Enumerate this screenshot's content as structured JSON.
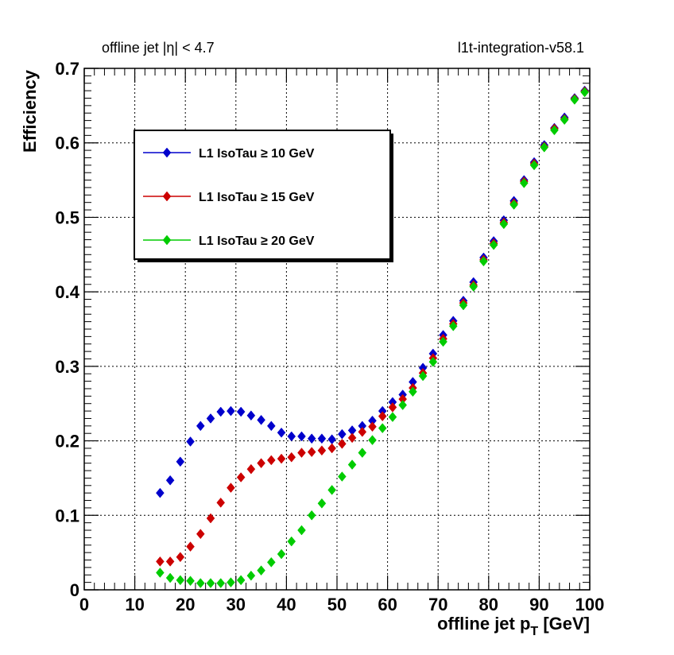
{
  "header": {
    "left": "offline jet |η| < 4.7",
    "right": "l1t-integration-v58.1"
  },
  "chart_data": {
    "type": "scatter",
    "title": "",
    "xlabel": "offline jet p",
    "xlabel_sub": "T",
    "xlabel_unit": " [GeV]",
    "ylabel": "Efficiency",
    "xlim": [
      0,
      100
    ],
    "ylim": [
      0,
      0.7
    ],
    "xticks": [
      0,
      10,
      20,
      30,
      40,
      50,
      60,
      70,
      80,
      90,
      100
    ],
    "xtick_labels": [
      "0",
      "10",
      "20",
      "30",
      "40",
      "50",
      "60",
      "70",
      "80",
      "90",
      "100"
    ],
    "yticks": [
      0,
      0.1,
      0.2,
      0.3,
      0.4,
      0.5,
      0.6,
      0.7
    ],
    "ytick_labels": [
      "0",
      "0.1",
      "0.2",
      "0.3",
      "0.4",
      "0.5",
      "0.6",
      "0.7"
    ],
    "grid": true,
    "legend_position": "top-left",
    "x": [
      15,
      17,
      19,
      21,
      23,
      25,
      27,
      29,
      31,
      33,
      35,
      37,
      39,
      41,
      43,
      45,
      47,
      49,
      51,
      53,
      55,
      57,
      59,
      61,
      63,
      65,
      67,
      69,
      71,
      73,
      75,
      77,
      79,
      81,
      83,
      85,
      87,
      89,
      91,
      93,
      95,
      97,
      99
    ],
    "series": [
      {
        "name": "L1 IsoTau ≥ 10 GeV",
        "color": "#0000cc",
        "values": [
          0.13,
          0.147,
          0.172,
          0.199,
          0.22,
          0.23,
          0.239,
          0.24,
          0.239,
          0.234,
          0.228,
          0.22,
          0.211,
          0.206,
          0.206,
          0.203,
          0.203,
          0.202,
          0.209,
          0.214,
          0.22,
          0.227,
          0.24,
          0.252,
          0.262,
          0.279,
          0.298,
          0.317,
          0.342,
          0.361,
          0.388,
          0.413,
          0.446,
          0.468,
          0.496,
          0.522,
          0.55,
          0.574,
          0.597,
          0.62,
          0.634,
          0.66,
          0.67
        ]
      },
      {
        "name": "L1 IsoTau ≥ 15 GeV",
        "color": "#cc0000",
        "values": [
          0.038,
          0.038,
          0.044,
          0.058,
          0.075,
          0.096,
          0.117,
          0.137,
          0.151,
          0.162,
          0.17,
          0.174,
          0.176,
          0.178,
          0.184,
          0.185,
          0.187,
          0.19,
          0.196,
          0.204,
          0.212,
          0.219,
          0.233,
          0.245,
          0.256,
          0.271,
          0.291,
          0.311,
          0.337,
          0.357,
          0.385,
          0.409,
          0.443,
          0.465,
          0.493,
          0.519,
          0.548,
          0.572,
          0.595,
          0.619,
          0.632,
          0.659,
          0.669
        ]
      },
      {
        "name": "L1 IsoTau ≥ 20 GeV",
        "color": "#00cc00",
        "values": [
          0.023,
          0.016,
          0.013,
          0.012,
          0.009,
          0.009,
          0.009,
          0.01,
          0.013,
          0.019,
          0.026,
          0.037,
          0.048,
          0.065,
          0.08,
          0.1,
          0.116,
          0.134,
          0.152,
          0.168,
          0.184,
          0.201,
          0.217,
          0.232,
          0.248,
          0.266,
          0.287,
          0.306,
          0.333,
          0.354,
          0.382,
          0.407,
          0.441,
          0.463,
          0.491,
          0.517,
          0.546,
          0.57,
          0.594,
          0.617,
          0.631,
          0.658,
          0.668
        ]
      }
    ]
  }
}
